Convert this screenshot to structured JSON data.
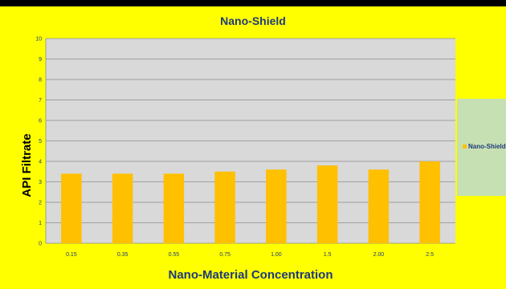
{
  "chart_data": {
    "type": "bar",
    "title": "Nano-Shield",
    "xlabel": "Nano-Material Concentration",
    "ylabel": "API Filtrate",
    "categories": [
      "0.15",
      "0.35",
      "0.55",
      "0.75",
      "1.00",
      "1.5",
      "2.00",
      "2.5"
    ],
    "series": [
      {
        "name": "Nano-Shield",
        "values": [
          3.4,
          3.4,
          3.4,
          3.5,
          3.6,
          3.8,
          3.6,
          4.0
        ]
      }
    ],
    "ylim": [
      0,
      10
    ],
    "yticks": [
      "0",
      "1",
      "2",
      "3",
      "4",
      "5",
      "6",
      "7",
      "8",
      "9",
      "10"
    ],
    "grid": true,
    "legend_position": "right",
    "colors": {
      "bar": "#ffc000",
      "plot_background": "#d9d9d9",
      "chart_background": "#ffff00",
      "legend_background": "#c6e0b4",
      "text": "#1f3a7a"
    }
  }
}
